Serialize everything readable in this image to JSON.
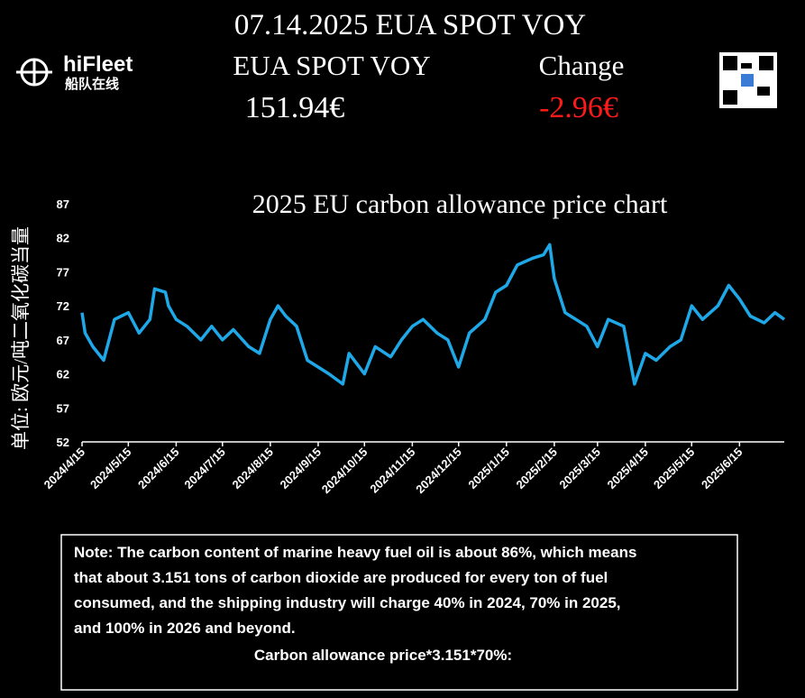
{
  "header": {
    "title": "07.14.2025 EUA SPOT VOY",
    "label_left": "EUA SPOT VOY",
    "label_right": "Change",
    "price": "151.94€",
    "change": "-2.96€",
    "brand": "hiFleet",
    "brand_sub": "船队在线"
  },
  "chart_data": {
    "type": "line",
    "title": "2025 EU carbon allowance price chart",
    "y_label": "单位: 欧元/吨二氧化碳当量",
    "x": [
      "2024/4/15",
      "2024/4/17",
      "2024/4/22",
      "2024/4/29",
      "2024/5/6",
      "2024/5/15",
      "2024/5/22",
      "2024/5/29",
      "2024/6/1",
      "2024/6/8",
      "2024/6/10",
      "2024/6/15",
      "2024/6/22",
      "2024/7/1",
      "2024/7/8",
      "2024/7/15",
      "2024/7/22",
      "2024/8/1",
      "2024/8/8",
      "2024/8/15",
      "2024/8/20",
      "2024/8/25",
      "2024/9/1",
      "2024/9/8",
      "2024/9/15",
      "2024/9/22",
      "2024/10/1",
      "2024/10/5",
      "2024/10/15",
      "2024/10/22",
      "2024/11/1",
      "2024/11/8",
      "2024/11/15",
      "2024/11/22",
      "2024/12/1",
      "2024/12/8",
      "2024/12/15",
      "2024/12/22",
      "2025/1/1",
      "2025/1/8",
      "2025/1/15",
      "2025/1/22",
      "2025/2/1",
      "2025/2/8",
      "2025/2/12",
      "2025/2/15",
      "2025/2/22",
      "2025/3/1",
      "2025/3/8",
      "2025/3/15",
      "2025/3/22",
      "2025/4/1",
      "2025/4/8",
      "2025/4/15",
      "2025/4/22",
      "2025/5/1",
      "2025/5/8",
      "2025/5/15",
      "2025/5/22",
      "2025/6/1",
      "2025/6/8",
      "2025/6/15",
      "2025/6/22",
      "2025/7/1",
      "2025/7/8",
      "2025/7/14"
    ],
    "series": [
      {
        "name": "EUA",
        "color": "#1fa8e8",
        "values": [
          71,
          68,
          66,
          64,
          70,
          71,
          68,
          70,
          74.5,
          74,
          72,
          70,
          69,
          67,
          69,
          67,
          68.5,
          66,
          65,
          70,
          72,
          70.5,
          69,
          64,
          63,
          62,
          60.5,
          65,
          62,
          66,
          64.5,
          67,
          69,
          70,
          68,
          67,
          63,
          68,
          70,
          74,
          75,
          78,
          79,
          79.5,
          81,
          76,
          71,
          70,
          69,
          66,
          70,
          69,
          60.5,
          65,
          64,
          66,
          67,
          72,
          70,
          72,
          75,
          73,
          70.5,
          69.5,
          71,
          70
        ]
      }
    ],
    "xlim": [
      "2024/4/15",
      "2025/7/14"
    ],
    "xticks": [
      "2024/4/15",
      "2024/5/15",
      "2024/6/15",
      "2024/7/15",
      "2024/8/15",
      "2024/9/15",
      "2024/10/15",
      "2024/11/15",
      "2024/12/15",
      "2025/1/15",
      "2025/2/15",
      "2025/3/15",
      "2025/4/15",
      "2025/5/15",
      "2025/6/15"
    ],
    "ylim": [
      52,
      87
    ],
    "yticks": [
      52,
      57,
      62,
      67,
      72,
      77,
      82,
      87
    ]
  },
  "note": {
    "lines": [
      "Note: The carbon content of marine heavy fuel oil is about 86%, which means",
      "that about 3.151 tons of carbon dioxide are produced for every ton of fuel",
      "consumed, and the shipping industry will charge 40% in 2024, 70% in 2025,",
      "and 100% in 2026 and beyond."
    ],
    "formula": "Carbon allowance price*3.151*70%:"
  }
}
